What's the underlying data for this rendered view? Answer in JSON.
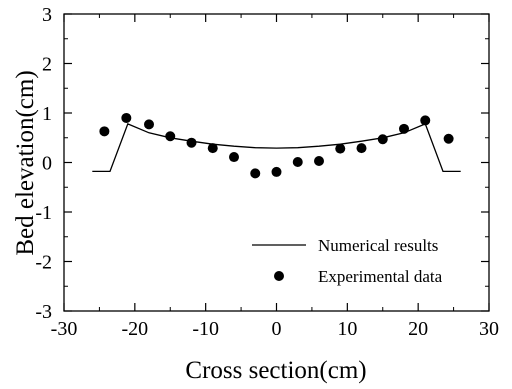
{
  "chart_data": {
    "type": "line",
    "title": "",
    "xlabel": "Cross section(cm)",
    "ylabel": "Bed elevation(cm)",
    "xlim": [
      -30,
      30
    ],
    "ylim": [
      -3,
      3
    ],
    "xticks": [
      -30,
      -20,
      -10,
      0,
      10,
      20,
      30
    ],
    "yticks": [
      -3,
      -2,
      -1,
      0,
      1,
      2,
      3
    ],
    "xtick_labels": [
      "-30",
      "-20",
      "-10",
      "0",
      "10",
      "20",
      "30"
    ],
    "ytick_labels": [
      "-3",
      "-2",
      "-1",
      "0",
      "1",
      "2",
      "3"
    ],
    "grid": false,
    "legend_position": "bottom-right",
    "series": [
      {
        "name": "Numerical results",
        "style": "line",
        "color": "#000000",
        "x": [
          -26,
          -23.5,
          -21,
          -18,
          -15,
          -12,
          -9,
          -6,
          -3,
          0,
          3,
          6,
          9,
          12,
          15,
          18,
          21,
          23.5,
          26
        ],
        "y": [
          -0.18,
          -0.18,
          0.78,
          0.6,
          0.5,
          0.43,
          0.37,
          0.33,
          0.3,
          0.29,
          0.3,
          0.33,
          0.37,
          0.43,
          0.5,
          0.6,
          0.78,
          -0.18,
          -0.18
        ]
      },
      {
        "name": "Experimental data",
        "style": "markers",
        "color": "#000000",
        "x": [
          -24.3,
          -21.2,
          -18,
          -15,
          -12,
          -9,
          -6,
          -3,
          0,
          3,
          6,
          9,
          12,
          15,
          18,
          21,
          24.3
        ],
        "y": [
          0.63,
          0.9,
          0.77,
          0.53,
          0.4,
          0.29,
          0.11,
          -0.22,
          -0.19,
          0.01,
          0.03,
          0.28,
          0.29,
          0.47,
          0.68,
          0.85,
          0.48
        ]
      }
    ]
  }
}
